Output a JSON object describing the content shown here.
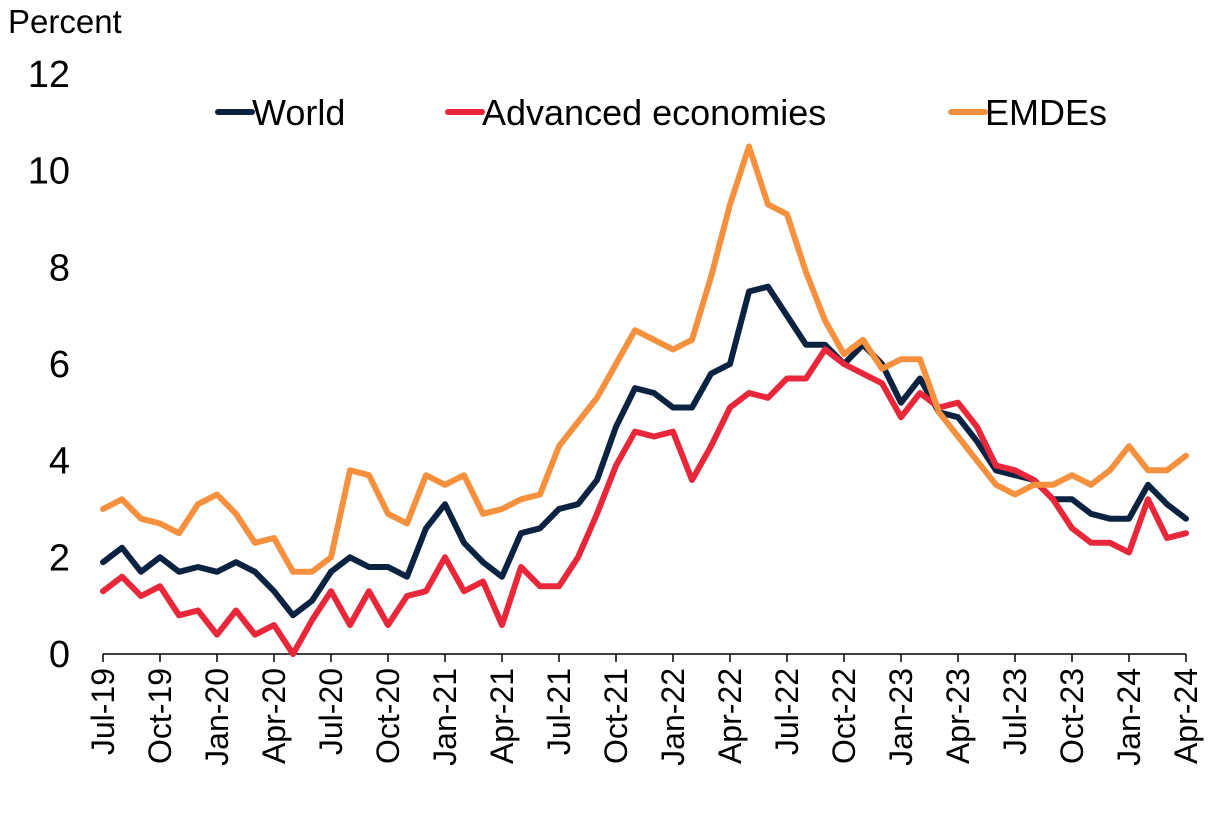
{
  "chart_data": {
    "type": "line",
    "title": "",
    "ylabel": "Percent",
    "xlabel": "",
    "ylim": [
      0,
      12
    ],
    "yticks": [
      0,
      2,
      4,
      6,
      8,
      10,
      12
    ],
    "grid": false,
    "legend_position": "top",
    "x": [
      "Jul-19",
      "Aug-19",
      "Sep-19",
      "Oct-19",
      "Nov-19",
      "Dec-19",
      "Jan-20",
      "Feb-20",
      "Mar-20",
      "Apr-20",
      "May-20",
      "Jun-20",
      "Jul-20",
      "Aug-20",
      "Sep-20",
      "Oct-20",
      "Nov-20",
      "Dec-20",
      "Jan-21",
      "Feb-21",
      "Mar-21",
      "Apr-21",
      "May-21",
      "Jun-21",
      "Jul-21",
      "Aug-21",
      "Sep-21",
      "Oct-21",
      "Nov-21",
      "Dec-21",
      "Jan-22",
      "Feb-22",
      "Mar-22",
      "Apr-22",
      "May-22",
      "Jun-22",
      "Jul-22",
      "Aug-22",
      "Sep-22",
      "Oct-22",
      "Nov-22",
      "Dec-22",
      "Jan-23",
      "Feb-23",
      "Mar-23",
      "Apr-23",
      "May-23",
      "Jun-23",
      "Jul-23",
      "Aug-23",
      "Sep-23",
      "Oct-23",
      "Nov-23",
      "Dec-23",
      "Jan-24",
      "Feb-24",
      "Mar-24",
      "Apr-24"
    ],
    "xtick_labels": [
      "Jul-19",
      "Oct-19",
      "Jan-20",
      "Apr-20",
      "Jul-20",
      "Oct-20",
      "Jan-21",
      "Apr-21",
      "Jul-21",
      "Oct-21",
      "Jan-22",
      "Apr-22",
      "Jul-22",
      "Oct-22",
      "Jan-23",
      "Apr-23",
      "Jul-23",
      "Oct-23",
      "Jan-24",
      "Apr-24"
    ],
    "series": [
      {
        "name": "World",
        "color": "#0b2341",
        "values": [
          1.9,
          2.2,
          1.7,
          2.0,
          1.7,
          1.8,
          1.7,
          1.9,
          1.7,
          1.3,
          0.8,
          1.1,
          1.7,
          2.0,
          1.8,
          1.8,
          1.6,
          2.6,
          3.1,
          2.3,
          1.9,
          1.6,
          2.5,
          2.6,
          3.0,
          3.1,
          3.6,
          4.7,
          5.5,
          5.4,
          5.1,
          5.1,
          5.8,
          6.0,
          7.5,
          7.6,
          7.0,
          6.4,
          6.4,
          6.0,
          6.4,
          6.0,
          5.2,
          5.7,
          5.0,
          4.9,
          4.4,
          3.8,
          3.7,
          3.6,
          3.2,
          3.2,
          2.9,
          2.8,
          2.8,
          3.5,
          3.1,
          2.8
        ]
      },
      {
        "name": "Advanced economies",
        "color": "#e8283a",
        "values": [
          1.3,
          1.6,
          1.2,
          1.4,
          0.8,
          0.9,
          0.4,
          0.9,
          0.4,
          0.6,
          0.0,
          0.7,
          1.3,
          0.6,
          1.3,
          0.6,
          1.2,
          1.3,
          2.0,
          1.3,
          1.5,
          0.6,
          1.8,
          1.4,
          1.4,
          2.0,
          2.9,
          3.9,
          4.6,
          4.5,
          4.6,
          3.6,
          4.3,
          5.1,
          5.4,
          5.3,
          5.7,
          5.7,
          6.3,
          6.0,
          5.8,
          5.6,
          4.9,
          5.4,
          5.1,
          5.2,
          4.7,
          3.9,
          3.8,
          3.6,
          3.2,
          2.6,
          2.3,
          2.3,
          2.1,
          3.2,
          2.4,
          2.5
        ]
      },
      {
        "name": "EMDEs",
        "color": "#f5913e",
        "values": [
          3.0,
          3.2,
          2.8,
          2.7,
          2.5,
          3.1,
          3.3,
          2.9,
          2.3,
          2.4,
          1.7,
          1.7,
          2.0,
          3.8,
          3.7,
          2.9,
          2.7,
          3.7,
          3.5,
          3.7,
          2.9,
          3.0,
          3.2,
          3.3,
          4.3,
          4.8,
          5.3,
          6.0,
          6.7,
          6.5,
          6.3,
          6.5,
          7.8,
          9.3,
          10.5,
          9.3,
          9.1,
          7.9,
          6.9,
          6.2,
          6.5,
          5.9,
          6.1,
          6.1,
          5.0,
          4.5,
          4.0,
          3.5,
          3.3,
          3.5,
          3.5,
          3.7,
          3.5,
          3.8,
          4.3,
          3.8,
          3.8,
          4.1
        ]
      }
    ]
  }
}
